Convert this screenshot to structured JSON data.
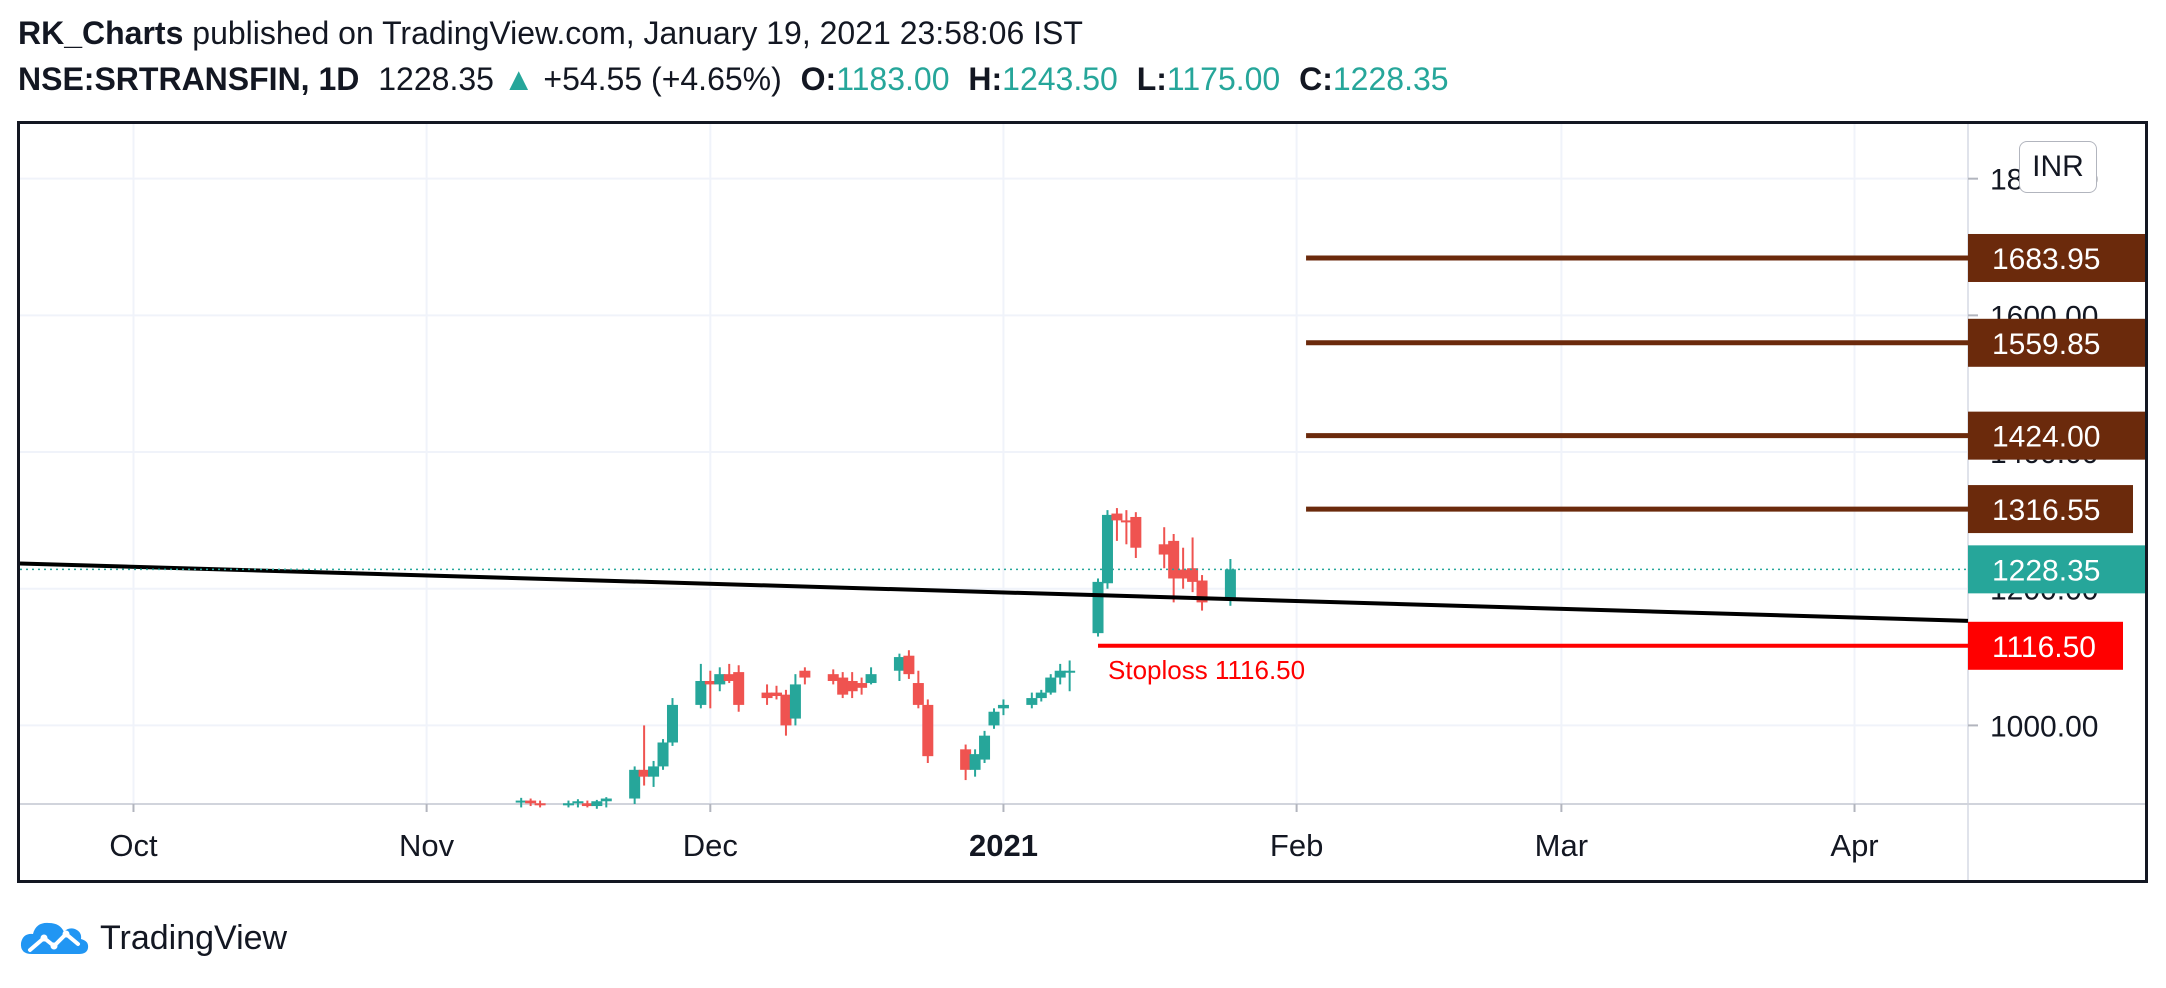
{
  "header": {
    "author": "RK_Charts",
    "published": "published on TradingView.com, January 19, 2021 23:58:06 IST",
    "symbol": "NSE:SRTRANSFIN, 1D",
    "price": "1228.35",
    "change_icon": "up-triangle-icon",
    "change": "+54.55 (+4.65%)",
    "o_label": "O:",
    "o_value": "1183.00",
    "h_label": "H:",
    "h_value": "1243.50",
    "l_label": "L:",
    "l_value": "1175.00",
    "c_label": "C:",
    "c_value": "1228.35"
  },
  "currency": "INR",
  "footer": {
    "logo_icon": "tradingview-cloud-icon",
    "brand": "TradingView"
  },
  "colors": {
    "up": "#26a69a",
    "down": "#ef5350",
    "target": "#6b2a0c",
    "stoploss": "#ff0000",
    "trendline": "#000000"
  },
  "chart_data": {
    "type": "candlestick",
    "symbol": "NSE:SRTRANSFIN",
    "interval": "1D",
    "x_range": [
      "2020-09-19",
      "2021-04-13"
    ],
    "ylim": [
      885,
      1880
    ],
    "y_ticks": [
      {
        "value": 1000,
        "label": "1000.00"
      },
      {
        "value": 1200,
        "label": "1200.00"
      },
      {
        "value": 1400,
        "label": "1400.00"
      },
      {
        "value": 1600,
        "label": "1600.00"
      },
      {
        "value": 1800,
        "label": "1800.00"
      }
    ],
    "x_ticks": [
      {
        "date": "2020-10-01",
        "label": "Oct",
        "bold": false
      },
      {
        "date": "2020-11-01",
        "label": "Nov",
        "bold": false
      },
      {
        "date": "2020-12-01",
        "label": "Dec",
        "bold": false
      },
      {
        "date": "2021-01-01",
        "label": "2021",
        "bold": true
      },
      {
        "date": "2021-02-01",
        "label": "Feb",
        "bold": false
      },
      {
        "date": "2021-03-01",
        "label": "Mar",
        "bold": false
      },
      {
        "date": "2021-04-01",
        "label": "Apr",
        "bold": false
      }
    ],
    "candles": [
      {
        "date": "2020-11-11",
        "o": 888,
        "h": 894,
        "l": 880,
        "c": 890
      },
      {
        "date": "2020-11-12",
        "o": 890,
        "h": 893,
        "l": 882,
        "c": 886
      },
      {
        "date": "2020-11-13",
        "o": 886,
        "h": 890,
        "l": 880,
        "c": 885
      },
      {
        "date": "2020-11-16",
        "o": 885,
        "h": 890,
        "l": 880,
        "c": 886
      },
      {
        "date": "2020-11-17",
        "o": 886,
        "h": 892,
        "l": 880,
        "c": 889
      },
      {
        "date": "2020-11-18",
        "o": 886,
        "h": 890,
        "l": 880,
        "c": 882
      },
      {
        "date": "2020-11-19",
        "o": 882,
        "h": 891,
        "l": 878,
        "c": 889
      },
      {
        "date": "2020-11-20",
        "o": 889,
        "h": 895,
        "l": 880,
        "c": 893
      },
      {
        "date": "2020-11-23",
        "o": 893,
        "h": 940,
        "l": 885,
        "c": 935
      },
      {
        "date": "2020-11-24",
        "o": 935,
        "h": 1000,
        "l": 912,
        "c": 925
      },
      {
        "date": "2020-11-25",
        "o": 925,
        "h": 948,
        "l": 910,
        "c": 940
      },
      {
        "date": "2020-11-26",
        "o": 940,
        "h": 980,
        "l": 935,
        "c": 975
      },
      {
        "date": "2020-11-27",
        "o": 975,
        "h": 1040,
        "l": 970,
        "c": 1030
      },
      {
        "date": "2020-11-30",
        "o": 1030,
        "h": 1090,
        "l": 1025,
        "c": 1065
      },
      {
        "date": "2020-12-01",
        "o": 1065,
        "h": 1080,
        "l": 1025,
        "c": 1060
      },
      {
        "date": "2020-12-02",
        "o": 1060,
        "h": 1085,
        "l": 1050,
        "c": 1075
      },
      {
        "date": "2020-12-03",
        "o": 1075,
        "h": 1090,
        "l": 1062,
        "c": 1065
      },
      {
        "date": "2020-12-04",
        "o": 1078,
        "h": 1088,
        "l": 1020,
        "c": 1030
      },
      {
        "date": "2020-12-07",
        "o": 1048,
        "h": 1060,
        "l": 1030,
        "c": 1040
      },
      {
        "date": "2020-12-08",
        "o": 1048,
        "h": 1058,
        "l": 1038,
        "c": 1043
      },
      {
        "date": "2020-12-09",
        "o": 1045,
        "h": 1052,
        "l": 985,
        "c": 1000
      },
      {
        "date": "2020-12-10",
        "o": 1010,
        "h": 1075,
        "l": 1000,
        "c": 1060
      },
      {
        "date": "2020-12-11",
        "o": 1080,
        "h": 1085,
        "l": 1060,
        "c": 1070
      },
      {
        "date": "2020-12-14",
        "o": 1075,
        "h": 1082,
        "l": 1060,
        "c": 1065
      },
      {
        "date": "2020-12-15",
        "o": 1070,
        "h": 1078,
        "l": 1040,
        "c": 1045
      },
      {
        "date": "2020-12-16",
        "o": 1065,
        "h": 1078,
        "l": 1040,
        "c": 1050
      },
      {
        "date": "2020-12-17",
        "o": 1062,
        "h": 1070,
        "l": 1045,
        "c": 1055
      },
      {
        "date": "2020-12-18",
        "o": 1062,
        "h": 1085,
        "l": 1060,
        "c": 1075
      },
      {
        "date": "2020-12-21",
        "o": 1080,
        "h": 1105,
        "l": 1065,
        "c": 1100
      },
      {
        "date": "2020-12-22",
        "o": 1102,
        "h": 1110,
        "l": 1068,
        "c": 1075
      },
      {
        "date": "2020-12-23",
        "o": 1062,
        "h": 1080,
        "l": 1025,
        "c": 1030
      },
      {
        "date": "2020-12-24",
        "o": 1030,
        "h": 1038,
        "l": 945,
        "c": 955
      },
      {
        "date": "2020-12-28",
        "o": 965,
        "h": 972,
        "l": 920,
        "c": 935
      },
      {
        "date": "2020-12-29",
        "o": 935,
        "h": 965,
        "l": 925,
        "c": 958
      },
      {
        "date": "2020-12-30",
        "o": 950,
        "h": 992,
        "l": 945,
        "c": 985
      },
      {
        "date": "2020-12-31",
        "o": 1000,
        "h": 1025,
        "l": 995,
        "c": 1020
      },
      {
        "date": "2021-01-01",
        "o": 1025,
        "h": 1038,
        "l": 1015,
        "c": 1030
      },
      {
        "date": "2021-01-04",
        "o": 1030,
        "h": 1048,
        "l": 1025,
        "c": 1040
      },
      {
        "date": "2021-01-05",
        "o": 1040,
        "h": 1052,
        "l": 1035,
        "c": 1048
      },
      {
        "date": "2021-01-06",
        "o": 1048,
        "h": 1075,
        "l": 1045,
        "c": 1070
      },
      {
        "date": "2021-01-07",
        "o": 1070,
        "h": 1090,
        "l": 1060,
        "c": 1080
      },
      {
        "date": "2021-01-08",
        "o": 1080,
        "h": 1095,
        "l": 1050,
        "c": 1080
      },
      {
        "date": "2021-01-11",
        "o": 1135,
        "h": 1215,
        "l": 1130,
        "c": 1210
      },
      {
        "date": "2021-01-12",
        "o": 1208,
        "h": 1315,
        "l": 1200,
        "c": 1308
      },
      {
        "date": "2021-01-13",
        "o": 1310,
        "h": 1318,
        "l": 1270,
        "c": 1300
      },
      {
        "date": "2021-01-14",
        "o": 1300,
        "h": 1315,
        "l": 1265,
        "c": 1298
      },
      {
        "date": "2021-01-15",
        "o": 1305,
        "h": 1312,
        "l": 1245,
        "c": 1260
      },
      {
        "date": "2021-01-18",
        "o": 1265,
        "h": 1290,
        "l": 1230,
        "c": 1250
      },
      {
        "date": "2021-01-19",
        "o": 1270,
        "h": 1280,
        "l": 1180,
        "c": 1215
      },
      {
        "date": "2021-01-20",
        "o": 1228,
        "h": 1260,
        "l": 1200,
        "c": 1215
      },
      {
        "date": "2021-01-21",
        "o": 1230,
        "h": 1275,
        "l": 1195,
        "c": 1210
      },
      {
        "date": "2021-01-22",
        "o": 1212,
        "h": 1220,
        "l": 1168,
        "c": 1180
      },
      {
        "date": "2021-01-25",
        "o": 1183,
        "h": 1243.5,
        "l": 1175,
        "c": 1228.35
      }
    ],
    "trendline": {
      "from": {
        "date": "2020-09-19",
        "value": 1237
      },
      "to": {
        "date": "2021-04-13",
        "value": 1153
      }
    },
    "target_lines": [
      {
        "value": 1683.95,
        "label": "1683.95",
        "start_date": "2021-02-02"
      },
      {
        "value": 1559.85,
        "label": "1559.85",
        "start_date": "2021-02-02"
      },
      {
        "value": 1424.0,
        "label": "1424.00",
        "start_date": "2021-02-02"
      },
      {
        "value": 1316.55,
        "label": "1316.55",
        "start_date": "2021-02-02"
      }
    ],
    "stoploss": {
      "value": 1116.5,
      "label": "1116.50",
      "text": "Stoploss 1116.50",
      "start_date": "2021-01-11"
    },
    "last_price": {
      "value": 1228.35,
      "label": "1228.35"
    }
  }
}
